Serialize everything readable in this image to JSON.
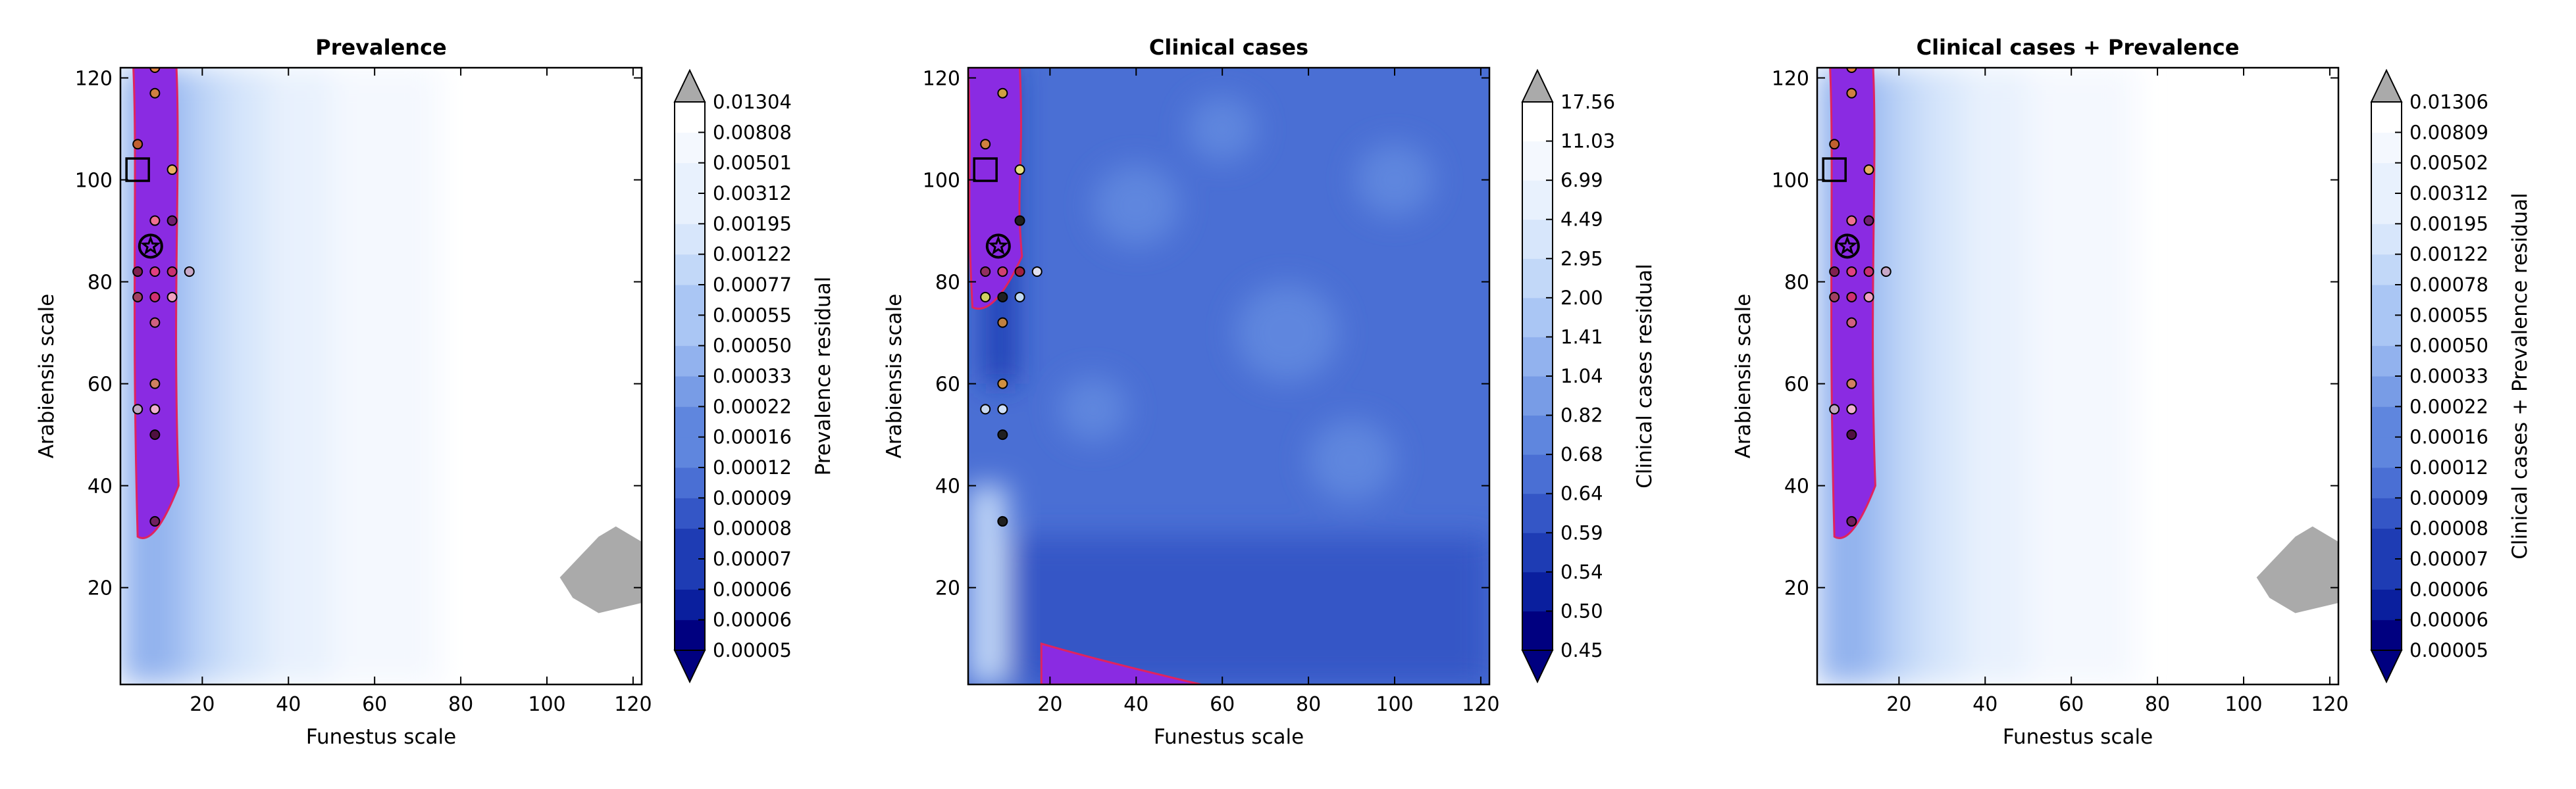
{
  "figure_colors": {
    "contour_ramp": [
      "#000080",
      "#0a1f9e",
      "#1e3cb4",
      "#3456c6",
      "#4a6fd4",
      "#5f86de",
      "#789ce6",
      "#92b2ee",
      "#aac6f4",
      "#c2d8f8",
      "#d7e6fb",
      "#e8f1fd",
      "#f4f8fe",
      "#ffffff"
    ],
    "lowest_region": "#8a2be2",
    "lowest_region_outline": "#e0245e",
    "masked_region": "#aaaaaa",
    "over_color": "#aaaaaa",
    "under_color": "#000080",
    "target_marker": "#000000"
  },
  "chart_data": [
    {
      "type": "heatmap",
      "title": "Prevalence",
      "xlabel": "Funestus scale",
      "ylabel": "Arabiensis scale",
      "xlim": [
        1,
        122
      ],
      "ylim": [
        1,
        122
      ],
      "xticks": [
        20,
        40,
        60,
        80,
        100,
        120
      ],
      "yticks": [
        20,
        40,
        60,
        80,
        100,
        120
      ],
      "colorbar": {
        "label": "Prevalence residual",
        "ticks": [
          "0.00005",
          "0.00006",
          "0.00006",
          "0.00007",
          "0.00008",
          "0.00009",
          "0.00012",
          "0.00016",
          "0.00022",
          "0.00033",
          "0.00050",
          "0.00055",
          "0.00077",
          "0.00122",
          "0.00195",
          "0.00312",
          "0.00501",
          "0.00808",
          "0.01304"
        ]
      },
      "low_band": {
        "x_center": 9,
        "half_width": 5,
        "y_range": [
          30,
          122
        ]
      },
      "masked_patch": {
        "x": [
          103,
          122
        ],
        "y": [
          15,
          32
        ]
      },
      "best_marker": {
        "x": 8,
        "y": 87
      },
      "square_marker": {
        "x": 5,
        "y": 102
      },
      "points": [
        {
          "x": 9,
          "y": 122,
          "color": "#e08040"
        },
        {
          "x": 9,
          "y": 117,
          "color": "#d08040"
        },
        {
          "x": 5,
          "y": 107,
          "color": "#c06030"
        },
        {
          "x": 13,
          "y": 102,
          "color": "#e8b060"
        },
        {
          "x": 9,
          "y": 92,
          "color": "#f07090"
        },
        {
          "x": 13,
          "y": 92,
          "color": "#702070"
        },
        {
          "x": 5,
          "y": 82,
          "color": "#802050"
        },
        {
          "x": 9,
          "y": 82,
          "color": "#e04080"
        },
        {
          "x": 13,
          "y": 82,
          "color": "#c83070"
        },
        {
          "x": 17,
          "y": 82,
          "color": "#c8a8c8"
        },
        {
          "x": 5,
          "y": 77,
          "color": "#a04060"
        },
        {
          "x": 9,
          "y": 77,
          "color": "#d03070"
        },
        {
          "x": 13,
          "y": 77,
          "color": "#f0a0c0"
        },
        {
          "x": 9,
          "y": 72,
          "color": "#d06080"
        },
        {
          "x": 9,
          "y": 60,
          "color": "#d08060"
        },
        {
          "x": 5,
          "y": 55,
          "color": "#c0a8c0"
        },
        {
          "x": 9,
          "y": 55,
          "color": "#f0b0d0"
        },
        {
          "x": 9,
          "y": 50,
          "color": "#501040"
        },
        {
          "x": 9,
          "y": 33,
          "color": "#702060"
        }
      ]
    },
    {
      "type": "heatmap",
      "title": "Clinical cases",
      "xlabel": "Funestus scale",
      "ylabel": "Arabiensis scale",
      "xlim": [
        1,
        122
      ],
      "ylim": [
        1,
        122
      ],
      "xticks": [
        20,
        40,
        60,
        80,
        100,
        120
      ],
      "yticks": [
        20,
        40,
        60,
        80,
        100,
        120
      ],
      "colorbar": {
        "label": "Clinical cases residual",
        "ticks": [
          "0.45",
          "0.50",
          "0.54",
          "0.59",
          "0.64",
          "0.68",
          "0.82",
          "1.04",
          "1.41",
          "2.00",
          "2.95",
          "4.49",
          "6.99",
          "11.03",
          "17.56"
        ]
      },
      "low_band": {
        "x_center": 7,
        "half_width": 6,
        "y_range": [
          75,
          122
        ]
      },
      "bottom_band": {
        "x_range": [
          18,
          55
        ],
        "y_range": [
          1,
          9
        ]
      },
      "best_marker": {
        "x": 8,
        "y": 87
      },
      "square_marker": {
        "x": 5,
        "y": 102
      },
      "points": [
        {
          "x": 9,
          "y": 117,
          "color": "#d0a040"
        },
        {
          "x": 5,
          "y": 107,
          "color": "#d08040"
        },
        {
          "x": 13,
          "y": 102,
          "color": "#e8e080"
        },
        {
          "x": 13,
          "y": 92,
          "color": "#202020"
        },
        {
          "x": 5,
          "y": 82,
          "color": "#903060"
        },
        {
          "x": 9,
          "y": 82,
          "color": "#d04070"
        },
        {
          "x": 13,
          "y": 82,
          "color": "#a02040"
        },
        {
          "x": 17,
          "y": 82,
          "color": "#e0e0f0"
        },
        {
          "x": 5,
          "y": 77,
          "color": "#d0d060"
        },
        {
          "x": 9,
          "y": 77,
          "color": "#202020"
        },
        {
          "x": 13,
          "y": 77,
          "color": "#c0d8f0"
        },
        {
          "x": 9,
          "y": 72,
          "color": "#c08040"
        },
        {
          "x": 9,
          "y": 60,
          "color": "#d09040"
        },
        {
          "x": 5,
          "y": 55,
          "color": "#c8d8f0"
        },
        {
          "x": 9,
          "y": 55,
          "color": "#d0e0f8"
        },
        {
          "x": 9,
          "y": 50,
          "color": "#202020"
        },
        {
          "x": 9,
          "y": 33,
          "color": "#202020"
        }
      ]
    },
    {
      "type": "heatmap",
      "title": "Clinical cases + Prevalence",
      "xlabel": "Funestus scale",
      "ylabel": "Arabiensis scale",
      "xlim": [
        1,
        122
      ],
      "ylim": [
        1,
        122
      ],
      "xticks": [
        20,
        40,
        60,
        80,
        100,
        120
      ],
      "yticks": [
        20,
        40,
        60,
        80,
        100,
        120
      ],
      "colorbar": {
        "label": "Clinical cases + Prevalence residual",
        "ticks": [
          "0.00005",
          "0.00006",
          "0.00006",
          "0.00007",
          "0.00008",
          "0.00009",
          "0.00012",
          "0.00016",
          "0.00022",
          "0.00033",
          "0.00050",
          "0.00055",
          "0.00078",
          "0.00122",
          "0.00195",
          "0.00312",
          "0.00502",
          "0.00809",
          "0.01306"
        ]
      },
      "low_band": {
        "x_center": 9,
        "half_width": 5,
        "y_range": [
          30,
          122
        ]
      },
      "masked_patch": {
        "x": [
          103,
          122
        ],
        "y": [
          15,
          32
        ]
      },
      "best_marker": {
        "x": 8,
        "y": 87
      },
      "square_marker": {
        "x": 5,
        "y": 102
      },
      "points": [
        {
          "x": 9,
          "y": 122,
          "color": "#e08040"
        },
        {
          "x": 9,
          "y": 117,
          "color": "#d08040"
        },
        {
          "x": 5,
          "y": 107,
          "color": "#c06030"
        },
        {
          "x": 13,
          "y": 102,
          "color": "#e8b060"
        },
        {
          "x": 9,
          "y": 92,
          "color": "#f07090"
        },
        {
          "x": 13,
          "y": 92,
          "color": "#702070"
        },
        {
          "x": 5,
          "y": 82,
          "color": "#802050"
        },
        {
          "x": 9,
          "y": 82,
          "color": "#e04080"
        },
        {
          "x": 13,
          "y": 82,
          "color": "#c83070"
        },
        {
          "x": 17,
          "y": 82,
          "color": "#c8a8c8"
        },
        {
          "x": 5,
          "y": 77,
          "color": "#a04060"
        },
        {
          "x": 9,
          "y": 77,
          "color": "#d03070"
        },
        {
          "x": 13,
          "y": 77,
          "color": "#f0a0c0"
        },
        {
          "x": 9,
          "y": 72,
          "color": "#d06080"
        },
        {
          "x": 9,
          "y": 60,
          "color": "#d08060"
        },
        {
          "x": 5,
          "y": 55,
          "color": "#c0a8c0"
        },
        {
          "x": 9,
          "y": 55,
          "color": "#f0b0d0"
        },
        {
          "x": 9,
          "y": 50,
          "color": "#501040"
        },
        {
          "x": 9,
          "y": 33,
          "color": "#702060"
        }
      ]
    }
  ]
}
